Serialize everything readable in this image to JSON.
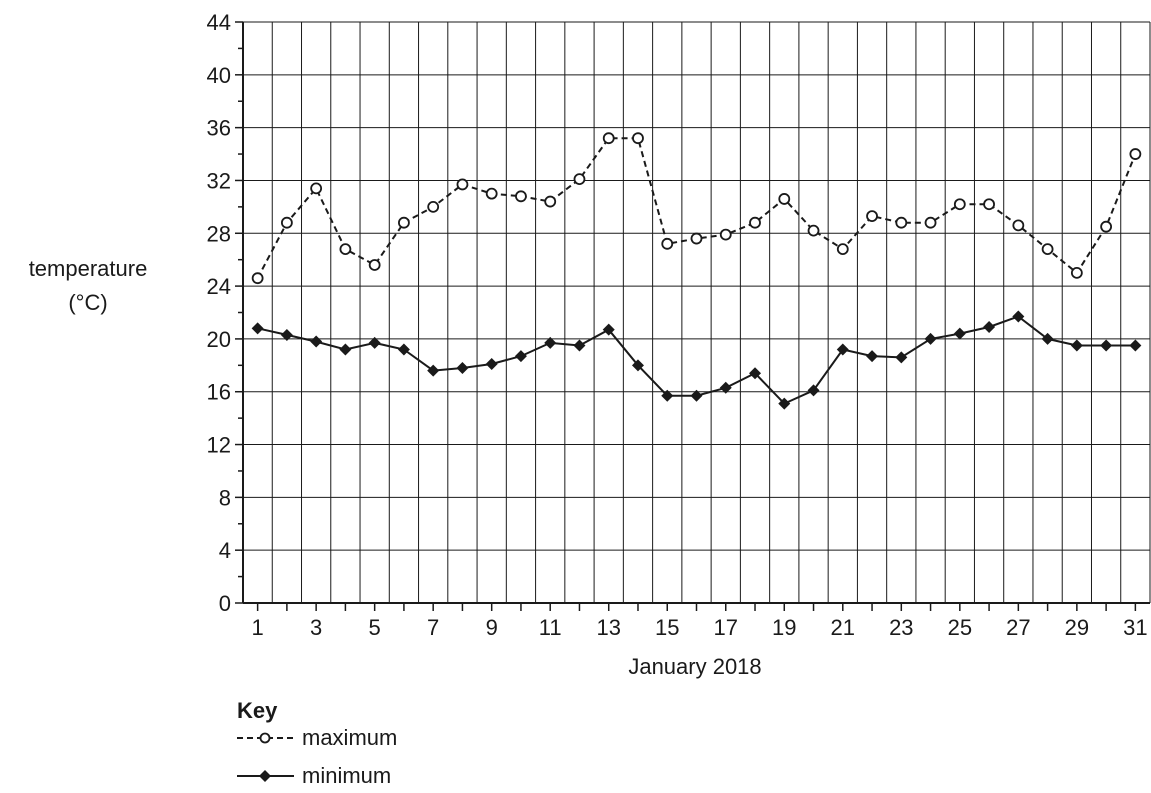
{
  "chart_data": {
    "type": "line",
    "xlabel": "January 2018",
    "ylabel_line1": "temperature",
    "ylabel_line2": "(°C)",
    "ylim": [
      0,
      44
    ],
    "xlim": [
      1,
      31
    ],
    "y_ticks": [
      0,
      4,
      8,
      12,
      16,
      20,
      24,
      28,
      32,
      36,
      40,
      44
    ],
    "x_ticks": [
      1,
      3,
      5,
      7,
      9,
      11,
      13,
      15,
      17,
      19,
      21,
      23,
      25,
      27,
      29,
      31
    ],
    "grid": true,
    "legend": {
      "title": "Key",
      "placement": "bottom-left"
    },
    "x": [
      1,
      2,
      3,
      4,
      5,
      6,
      7,
      8,
      9,
      10,
      11,
      12,
      13,
      14,
      15,
      16,
      17,
      18,
      19,
      20,
      21,
      22,
      23,
      24,
      25,
      26,
      27,
      28,
      29,
      30,
      31
    ],
    "series": [
      {
        "name": "maximum",
        "style": "dashed",
        "marker": "open-circle",
        "color": "#1a1a1a",
        "values": [
          24.6,
          28.8,
          31.4,
          26.8,
          25.6,
          28.8,
          30.0,
          31.7,
          31.0,
          30.8,
          30.4,
          32.1,
          35.2,
          35.2,
          27.2,
          27.6,
          27.9,
          28.8,
          30.6,
          28.2,
          26.8,
          29.3,
          28.8,
          28.8,
          30.2,
          30.2,
          28.6,
          26.8,
          25.0,
          28.5,
          34.0
        ]
      },
      {
        "name": "minimum",
        "style": "solid",
        "marker": "filled-diamond",
        "color": "#1a1a1a",
        "values": [
          20.8,
          20.3,
          19.8,
          19.2,
          19.7,
          19.2,
          17.6,
          17.8,
          18.1,
          18.7,
          19.7,
          19.5,
          20.7,
          18.0,
          15.7,
          15.7,
          16.3,
          17.4,
          15.1,
          16.1,
          19.2,
          18.7,
          18.6,
          20.0,
          20.4,
          20.9,
          21.7,
          20.0,
          19.5,
          19.5,
          19.5
        ]
      }
    ]
  }
}
